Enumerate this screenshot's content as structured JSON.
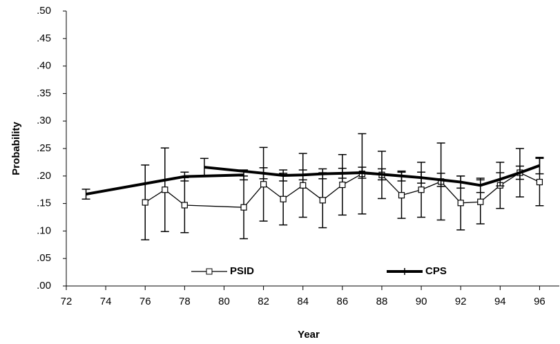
{
  "chart_data": {
    "type": "line",
    "xlabel": "Year",
    "ylabel": "Probability",
    "xlim": [
      72,
      97
    ],
    "xticks": [
      72,
      74,
      76,
      78,
      80,
      82,
      84,
      86,
      88,
      90,
      92,
      94,
      96
    ],
    "ylim": [
      0,
      0.5
    ],
    "yticks": [
      {
        "value": 0,
        "label": ".00"
      },
      {
        "value": 0.05,
        "label": ".05"
      },
      {
        "value": 0.1,
        "label": ".10"
      },
      {
        "value": 0.15,
        "label": ".15"
      },
      {
        "value": 0.2,
        "label": ".20"
      },
      {
        "value": 0.25,
        "label": ".25"
      },
      {
        "value": 0.3,
        "label": ".30"
      },
      {
        "value": 0.35,
        "label": ".35"
      },
      {
        "value": 0.4,
        "label": ".40"
      },
      {
        "value": 0.45,
        "label": ".45"
      },
      {
        "value": 0.5,
        "label": ".50"
      }
    ],
    "series": [
      {
        "name": "PSID",
        "color": "#000000",
        "marker": "square",
        "x": [
          76,
          77,
          78,
          81,
          82,
          83,
          84,
          85,
          86,
          87,
          88,
          89,
          90,
          91,
          92,
          93,
          94,
          95,
          96
        ],
        "values": [
          0.152,
          0.175,
          0.147,
          0.143,
          0.185,
          0.158,
          0.183,
          0.156,
          0.184,
          0.204,
          0.202,
          0.165,
          0.175,
          0.19,
          0.151,
          0.153,
          0.183,
          0.206,
          0.189
        ],
        "errors": [
          0.068,
          0.076,
          0.05,
          0.057,
          0.067,
          0.047,
          0.058,
          0.05,
          0.055,
          0.073,
          0.043,
          0.042,
          0.05,
          0.07,
          0.049,
          0.04,
          0.042,
          0.044,
          0.043
        ]
      },
      {
        "name": "CPS",
        "color": "#000000",
        "marker": "dash",
        "x": [
          73,
          78,
          81,
          null,
          79,
          82,
          83,
          84,
          85,
          86,
          87,
          88,
          89,
          90,
          91,
          92,
          93,
          94,
          95,
          96
        ],
        "values": [
          0.167,
          0.199,
          0.202,
          null,
          0.216,
          0.205,
          0.201,
          0.202,
          0.204,
          0.205,
          0.206,
          0.203,
          0.2,
          0.197,
          0.193,
          0.189,
          0.183,
          0.194,
          0.206,
          0.219
        ],
        "errors": [
          0.009,
          0.008,
          0.009,
          null,
          0.016,
          0.01,
          0.01,
          0.009,
          0.009,
          0.009,
          0.01,
          0.01,
          0.009,
          0.01,
          0.012,
          0.011,
          0.013,
          0.012,
          0.012,
          0.015
        ]
      }
    ]
  }
}
